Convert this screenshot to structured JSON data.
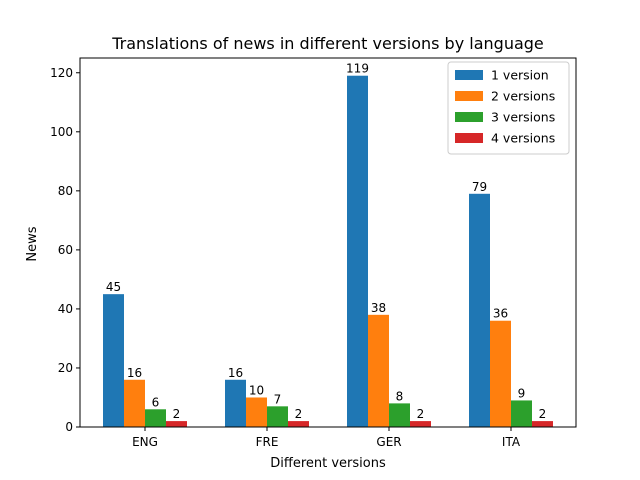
{
  "chart_data": {
    "type": "bar",
    "title": "Translations of news in different versions by language",
    "xlabel": "Different versions",
    "ylabel": "News",
    "categories": [
      "ENG",
      "FRE",
      "GER",
      "ITA"
    ],
    "ylim": [
      0,
      125
    ],
    "yticks": [
      0,
      20,
      40,
      60,
      80,
      100,
      120
    ],
    "grid": false,
    "legend_position": "top-right",
    "series": [
      {
        "name": "1 version",
        "color": "#1f77b4",
        "values": [
          45,
          16,
          119,
          79
        ]
      },
      {
        "name": "2 versions",
        "color": "#ff7f0e",
        "values": [
          16,
          10,
          38,
          36
        ]
      },
      {
        "name": "3 versions",
        "color": "#2ca02c",
        "values": [
          6,
          7,
          8,
          9
        ]
      },
      {
        "name": "4 versions",
        "color": "#d62728",
        "values": [
          2,
          2,
          2,
          2
        ]
      }
    ]
  }
}
